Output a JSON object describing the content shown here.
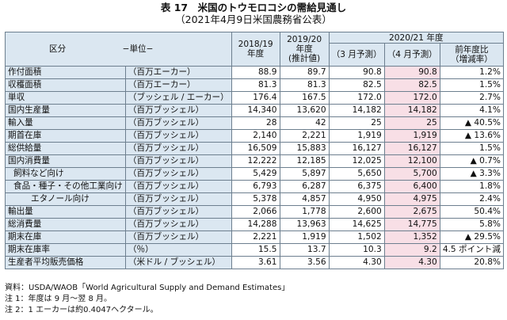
{
  "title": {
    "line1": "表 17　米国のトウモロコシの需給見通し",
    "line2": "（2021年4月9日米国農務省公表）"
  },
  "header": {
    "category": "区分",
    "unit": "−単位−",
    "c1": [
      "2018/19",
      "年度"
    ],
    "c2": [
      "2019/20",
      "年度",
      "(推計値)"
    ],
    "group": "2020/21 年度",
    "c3": "（3 月予測）",
    "c4": "（4 月予測）",
    "c5": [
      "前年度比",
      "（増減率）"
    ]
  },
  "rows": [
    {
      "label": "作付面積",
      "unit": "（百万エーカー）",
      "v": [
        "88.9",
        "89.7",
        "90.8",
        "90.8",
        "1.2%"
      ],
      "indent": 0
    },
    {
      "label": "収穫面積",
      "unit": "（百万エーカー）",
      "v": [
        "81.3",
        "81.3",
        "82.5",
        "82.5",
        "1.5%"
      ],
      "indent": 0
    },
    {
      "label": "単収",
      "unit": "（ブッシェル / エーカー）",
      "v": [
        "176.4",
        "167.5",
        "172.0",
        "172.0",
        "2.7%"
      ],
      "indent": 0
    },
    {
      "label": "国内生産量",
      "unit": "（百万ブッシェル）",
      "v": [
        "14,340",
        "13,620",
        "14,182",
        "14,182",
        "4.1%"
      ],
      "indent": 0
    },
    {
      "label": "輸入量",
      "unit": "（百万ブッシェル）",
      "v": [
        "28",
        "42",
        "25",
        "25",
        "▲ 40.5%"
      ],
      "indent": 0
    },
    {
      "label": "期首在庫",
      "unit": "（百万ブッシェル）",
      "v": [
        "2,140",
        "2,221",
        "1,919",
        "1,919",
        "▲ 13.6%"
      ],
      "indent": 0
    },
    {
      "label": "総供給量",
      "unit": "（百万ブッシェル）",
      "v": [
        "16,509",
        "15,883",
        "16,127",
        "16,127",
        "1.5%"
      ],
      "indent": 0
    },
    {
      "label": "国内消費量",
      "unit": "（百万ブッシェル）",
      "v": [
        "12,222",
        "12,185",
        "12,025",
        "12,100",
        "▲ 0.7%"
      ],
      "indent": 0
    },
    {
      "label": "飼料など向け",
      "unit": "（百万ブッシェル）",
      "v": [
        "5,429",
        "5,897",
        "5,650",
        "5,700",
        "▲ 3.3%"
      ],
      "indent": 1
    },
    {
      "label": "食品・種子・その他工業向け",
      "unit": "（百万ブッシェル）",
      "v": [
        "6,793",
        "6,287",
        "6,375",
        "6,400",
        "1.8%"
      ],
      "indent": 1
    },
    {
      "label": "エタノール向け",
      "unit": "（百万ブッシェル）",
      "v": [
        "5,378",
        "4,857",
        "4,950",
        "4,975",
        "2.4%"
      ],
      "indent": 2
    },
    {
      "label": "輸出量",
      "unit": "（百万ブッシェル）",
      "v": [
        "2,066",
        "1,778",
        "2,600",
        "2,675",
        "50.4%"
      ],
      "indent": 0
    },
    {
      "label": "総消費量",
      "unit": "（百万ブッシェル）",
      "v": [
        "14,288",
        "13,963",
        "14,625",
        "14,775",
        "5.8%"
      ],
      "indent": 0
    },
    {
      "label": "期末在庫",
      "unit": "（百万ブッシェル）",
      "v": [
        "2,221",
        "1,919",
        "1,502",
        "1,352",
        "▲ 29.5%"
      ],
      "indent": 0
    },
    {
      "label": "期末在庫率",
      "unit": "（％）",
      "v": [
        "15.5",
        "13.7",
        "10.3",
        "9.2",
        "4.5 ポイント減"
      ],
      "indent": 0
    },
    {
      "label": "生産者平均販売価格",
      "unit": "（米ドル / ブッシェル）",
      "v": [
        "3.61",
        "3.56",
        "4.30",
        "4.30",
        "20.8%"
      ],
      "indent": 0
    }
  ],
  "notes": [
    "資料：USDA/WAOB「World Agricultural Supply and Demand Estimates」",
    "注 1：年度は 9 月〜翌 8 月。",
    "注 2：1 エーカーは約0.4047ヘクタール。"
  ],
  "colors": {
    "header_bg": "#dbe7f1",
    "highlight": "#f8dfe6",
    "border": "#6d7f8f"
  }
}
